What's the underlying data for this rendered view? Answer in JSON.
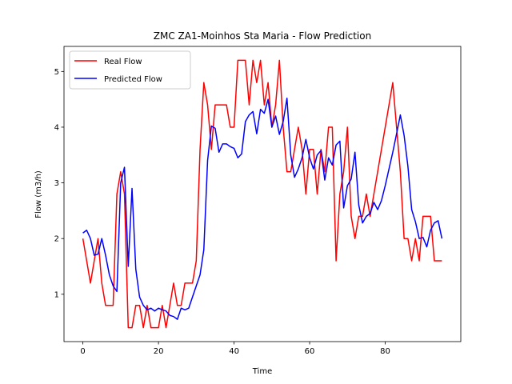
{
  "chart_data": {
    "type": "line",
    "title": "ZMC ZA1-Moinhos Sta Maria - Flow Prediction",
    "xlabel": "Time",
    "ylabel": "Flow (m3/h)",
    "xlim": [
      -5,
      100
    ],
    "ylim": [
      0.15,
      5.45
    ],
    "xticks": [
      0,
      20,
      40,
      60,
      80
    ],
    "yticks": [
      1,
      2,
      3,
      4,
      5
    ],
    "legend_position": "upper-left",
    "grid": false,
    "series": [
      {
        "name": "Real Flow",
        "color": "#ff0000",
        "x": [
          0,
          1,
          2,
          3,
          4,
          5,
          6,
          7,
          8,
          9,
          10,
          11,
          12,
          13,
          14,
          15,
          16,
          17,
          18,
          19,
          20,
          21,
          22,
          23,
          24,
          25,
          26,
          27,
          28,
          29,
          30,
          31,
          32,
          33,
          34,
          35,
          36,
          37,
          38,
          39,
          40,
          41,
          42,
          43,
          44,
          45,
          46,
          47,
          48,
          49,
          50,
          51,
          52,
          53,
          54,
          55,
          56,
          57,
          58,
          59,
          60,
          61,
          62,
          63,
          64,
          65,
          66,
          67,
          68,
          69,
          70,
          71,
          72,
          73,
          74,
          75,
          76,
          77,
          78,
          79,
          80,
          81,
          82,
          83,
          84,
          85,
          86,
          87,
          88,
          89,
          90,
          91,
          92,
          93,
          94,
          95
        ],
        "values": [
          2.0,
          1.6,
          1.2,
          1.6,
          2.0,
          1.2,
          0.8,
          0.8,
          0.8,
          2.8,
          3.2,
          2.8,
          0.4,
          0.4,
          0.8,
          0.8,
          0.4,
          0.8,
          0.4,
          0.4,
          0.4,
          0.8,
          0.4,
          0.8,
          1.2,
          0.8,
          0.8,
          1.2,
          1.2,
          1.2,
          1.6,
          3.6,
          4.8,
          4.4,
          3.6,
          4.4,
          4.4,
          4.4,
          4.4,
          4.0,
          4.0,
          5.2,
          5.2,
          5.2,
          4.4,
          5.2,
          4.8,
          5.2,
          4.4,
          4.8,
          4.0,
          4.4,
          5.2,
          4.0,
          3.2,
          3.2,
          3.6,
          4.0,
          3.6,
          2.8,
          3.6,
          3.6,
          2.8,
          3.6,
          3.2,
          4.0,
          4.0,
          1.6,
          2.8,
          3.2,
          4.0,
          2.4,
          2.0,
          2.4,
          2.4,
          2.8,
          2.4,
          2.8,
          3.2,
          3.6,
          4.0,
          4.4,
          4.8,
          4.0,
          3.2,
          2.0,
          2.0,
          1.6,
          2.0,
          1.6,
          2.4,
          2.4,
          2.4,
          1.6,
          1.6,
          1.6
        ]
      },
      {
        "name": "Predicted Flow",
        "color": "#0000ff",
        "x": [
          0,
          1,
          2,
          3,
          4,
          5,
          6,
          7,
          8,
          9,
          10,
          11,
          12,
          13,
          14,
          15,
          16,
          17,
          18,
          19,
          20,
          21,
          22,
          23,
          24,
          25,
          26,
          27,
          28,
          29,
          30,
          31,
          32,
          33,
          34,
          35,
          36,
          37,
          38,
          39,
          40,
          41,
          42,
          43,
          44,
          45,
          46,
          47,
          48,
          49,
          50,
          51,
          52,
          53,
          54,
          55,
          56,
          57,
          58,
          59,
          60,
          61,
          62,
          63,
          64,
          65,
          66,
          67,
          68,
          69,
          70,
          71,
          72,
          73,
          74,
          75,
          76,
          77,
          78,
          79,
          80,
          81,
          82,
          83,
          84,
          85,
          86,
          87,
          88,
          89,
          90,
          91,
          92,
          93,
          94,
          95
        ],
        "values": [
          2.1,
          2.15,
          2.0,
          1.7,
          1.72,
          2.0,
          1.7,
          1.35,
          1.15,
          1.05,
          3.0,
          3.28,
          1.5,
          2.9,
          1.45,
          0.95,
          0.8,
          0.72,
          0.75,
          0.7,
          0.75,
          0.72,
          0.7,
          0.62,
          0.6,
          0.55,
          0.75,
          0.72,
          0.75,
          0.95,
          1.15,
          1.35,
          1.8,
          3.4,
          4.02,
          3.98,
          3.55,
          3.7,
          3.7,
          3.65,
          3.62,
          3.45,
          3.52,
          4.1,
          4.22,
          4.28,
          3.88,
          4.32,
          4.25,
          4.5,
          4.0,
          4.2,
          3.87,
          4.1,
          4.52,
          3.5,
          3.1,
          3.25,
          3.45,
          3.78,
          3.45,
          3.25,
          3.5,
          3.58,
          3.05,
          3.45,
          3.32,
          3.68,
          3.75,
          2.55,
          2.95,
          3.07,
          3.55,
          2.6,
          2.28,
          2.4,
          2.45,
          2.65,
          2.52,
          2.68,
          2.95,
          3.25,
          3.55,
          3.88,
          4.22,
          3.85,
          3.3,
          2.52,
          2.3,
          2.0,
          2.02,
          1.85,
          2.15,
          2.28,
          2.32,
          2.0
        ]
      }
    ]
  }
}
